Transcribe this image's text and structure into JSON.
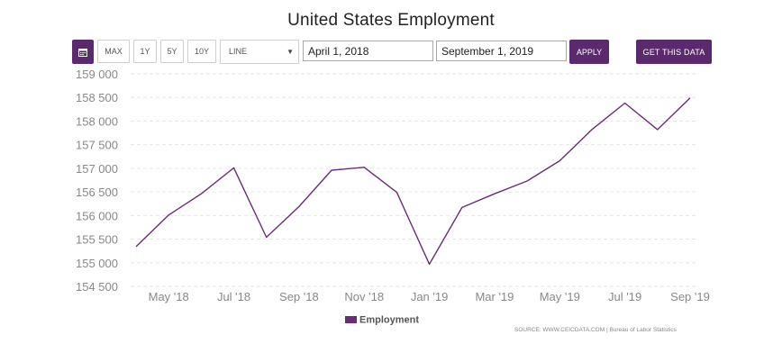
{
  "title": "United States Employment",
  "toolbar": {
    "calendar_icon": "calendar-icon",
    "ranges": [
      "MAX",
      "1Y",
      "5Y",
      "10Y"
    ],
    "chart_type": "LINE",
    "start_date": "April 1, 2018",
    "end_date": "September 1, 2019",
    "apply_label": "APPLY",
    "get_data_label": "GET THIS DATA"
  },
  "colors": {
    "accent": "#5b2a6e",
    "line": "#6b2c78",
    "grid": "#e6e6e6"
  },
  "chart_data": {
    "type": "line",
    "title": "United States Employment",
    "x": [
      "2018-04",
      "2018-05",
      "2018-06",
      "2018-07",
      "2018-08",
      "2018-09",
      "2018-10",
      "2018-11",
      "2018-12",
      "2019-01",
      "2019-02",
      "2019-03",
      "2019-04",
      "2019-05",
      "2019-06",
      "2019-07",
      "2019-08",
      "2019-09"
    ],
    "series": [
      {
        "name": "Employment",
        "values": [
          155340,
          156010,
          156460,
          157010,
          155540,
          156190,
          156960,
          157020,
          156490,
          154970,
          156170,
          156460,
          156730,
          157160,
          157830,
          158380,
          157820,
          158490
        ]
      }
    ],
    "x_tick_labels": [
      "May '18",
      "Jul '18",
      "Sep '18",
      "Nov '18",
      "Jan '19",
      "Mar '19",
      "May '19",
      "Jul '19",
      "Sep '19"
    ],
    "y_ticks": [
      "154 500",
      "155 000",
      "155 500",
      "156 000",
      "156 500",
      "157 000",
      "157 500",
      "158 000",
      "158 500",
      "159 000"
    ],
    "ylim": [
      154500,
      159000
    ],
    "grid": true,
    "legend": "bottom-center"
  },
  "source": "SOURCE: WWW.CEICDATA.COM | Bureau of Labor Statistics"
}
